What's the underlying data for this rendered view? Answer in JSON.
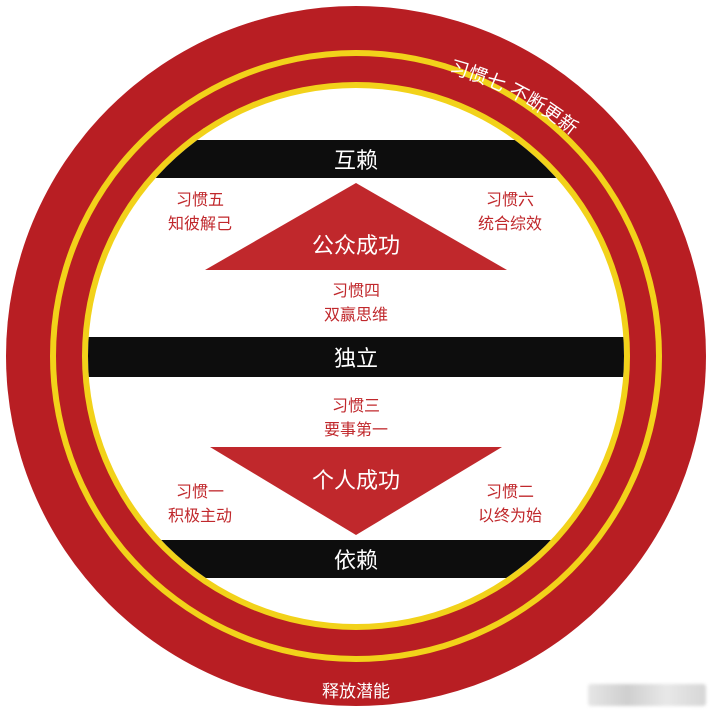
{
  "diagram": {
    "outer_ring_top_text": "习惯七 不断更新",
    "outer_ring_bottom_text": "释放潜能",
    "bands": {
      "top": "互赖",
      "middle": "独立",
      "bottom": "依赖"
    },
    "triangles": {
      "upper": "公众成功",
      "lower": "个人成功"
    },
    "habits": {
      "habit5": [
        "习惯五",
        "知彼解己"
      ],
      "habit6": [
        "习惯六",
        "统合综效"
      ],
      "habit4": [
        "习惯四",
        "双赢思维"
      ],
      "habit3": [
        "习惯三",
        "要事第一"
      ],
      "habit1": [
        "习惯一",
        "积极主动"
      ],
      "habit2": [
        "习惯二",
        "以终为始"
      ]
    },
    "colors": {
      "ring_red": "#b81e23",
      "ring_yellow": "#f2d21a",
      "band_black": "#0d0d0d",
      "triangle_red": "#c0282c",
      "text_red": "#c0282c"
    }
  }
}
